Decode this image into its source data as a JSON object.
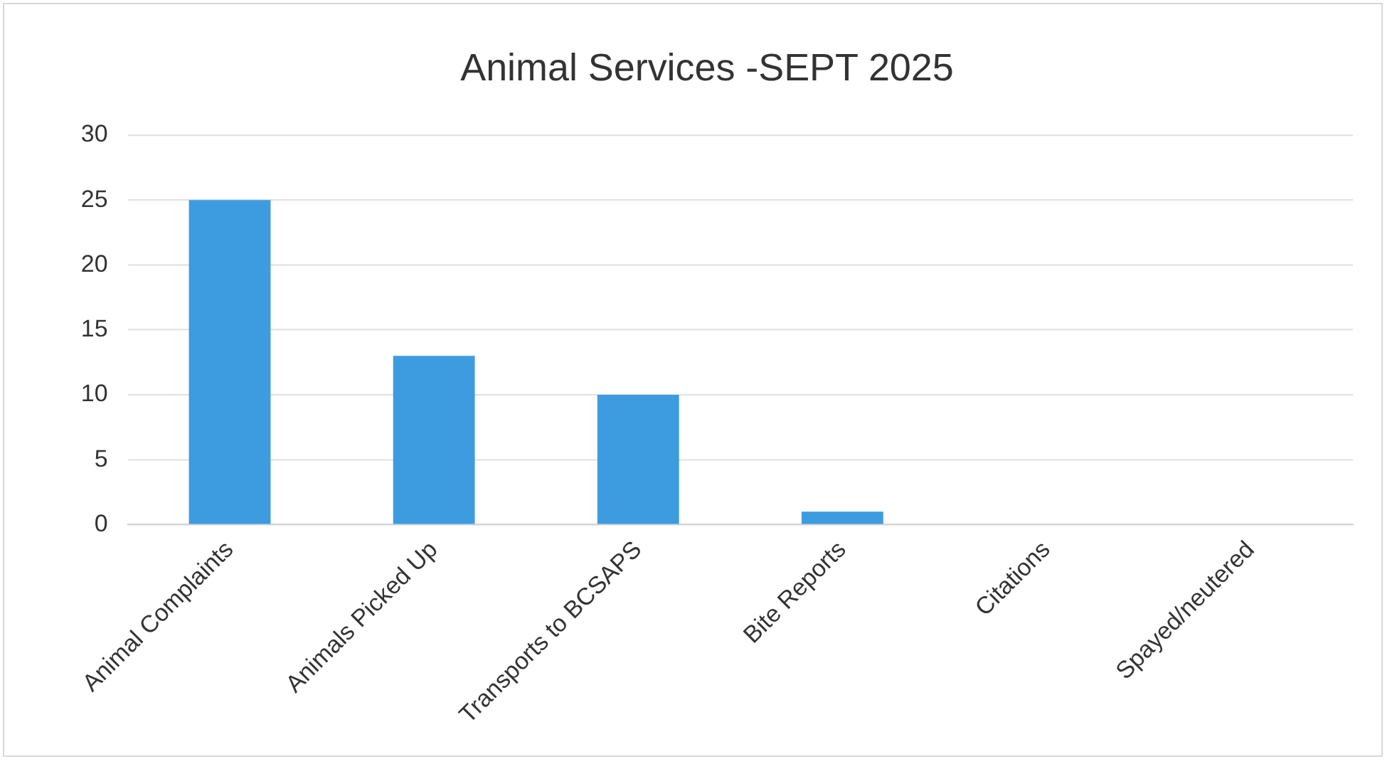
{
  "chart_data": {
    "type": "bar",
    "title": "Animal Services -SEPT 2025",
    "categories": [
      "Animal Complaints",
      "Animals Picked Up",
      "Transports to BCSAPS",
      "Bite Reports",
      "Citations",
      "Spayed/neutered"
    ],
    "values": [
      25,
      13,
      10,
      1,
      0,
      0
    ],
    "color": "#3d9be0",
    "ylim": [
      0,
      30
    ],
    "yticks": [
      0,
      5,
      10,
      15,
      20,
      25,
      30
    ],
    "grid": "y"
  }
}
